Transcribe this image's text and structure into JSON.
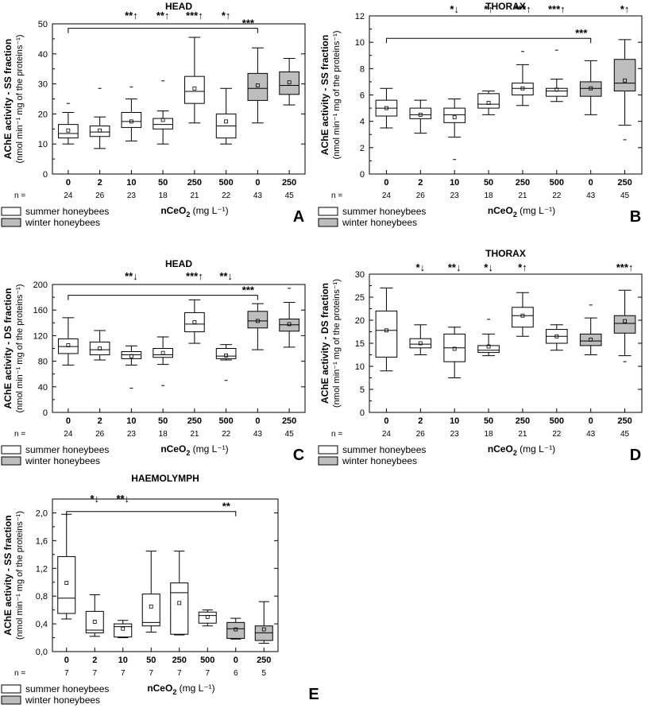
{
  "legend": {
    "summer": "summer honeybees",
    "winter": "winter honeybees"
  },
  "colors": {
    "summer": "#ffffff",
    "winter": "#bdbdbd",
    "stroke": "#000000"
  },
  "chart_data": [
    {
      "panel": "A",
      "type": "box",
      "title": "HEAD",
      "ylabel": "AChE activity - SS fraction",
      "ylabel_sub": "(nmol min⁻¹ mg of the proteins⁻¹)",
      "xlabel_main": "nCeO",
      "xlabel_sub": "2",
      "xlabel_unit": " (mg L⁻¹)",
      "n_label": "n =",
      "ylim": [
        0,
        50
      ],
      "yticks": [
        0,
        10,
        20,
        30,
        40,
        50
      ],
      "ytick_labels": [
        "0",
        "10",
        "20",
        "30",
        "40",
        "50"
      ],
      "categories": [
        "0",
        "2",
        "10",
        "50",
        "250",
        "500",
        "0",
        "250"
      ],
      "n": [
        "24",
        "26",
        "23",
        "18",
        "21",
        "22",
        "43",
        "45"
      ],
      "group": [
        "summer",
        "summer",
        "summer",
        "summer",
        "summer",
        "summer",
        "winter",
        "winter"
      ],
      "boxes": [
        {
          "whisker_low": 10,
          "q1": 12,
          "median": 13.5,
          "q3": 16.5,
          "whisker_high": 20.5,
          "mean": 14.5,
          "outliers": [
            23.5
          ]
        },
        {
          "whisker_low": 8.5,
          "q1": 12.5,
          "median": 14,
          "q3": 16,
          "whisker_high": 19,
          "mean": 14.5,
          "outliers": [
            28.5
          ]
        },
        {
          "whisker_low": 11,
          "q1": 15.5,
          "median": 17.5,
          "q3": 20.5,
          "whisker_high": 25,
          "mean": 17.5,
          "outliers": [
            29
          ]
        },
        {
          "whisker_low": 10,
          "q1": 15,
          "median": 16.5,
          "q3": 18.5,
          "whisker_high": 21,
          "mean": 18,
          "outliers": [
            31
          ]
        },
        {
          "whisker_low": 17,
          "q1": 23.5,
          "median": 27.5,
          "q3": 32.5,
          "whisker_high": 45.5,
          "mean": 28.5,
          "outliers": []
        },
        {
          "whisker_low": 10,
          "q1": 12,
          "median": 16,
          "q3": 20,
          "whisker_high": 28.5,
          "mean": 17.5,
          "outliers": []
        },
        {
          "whisker_low": 17,
          "q1": 24.5,
          "median": 28.5,
          "q3": 33.5,
          "whisker_high": 42,
          "mean": 29.5,
          "outliers": []
        },
        {
          "whisker_low": 23,
          "q1": 26.5,
          "median": 29.5,
          "q3": 34,
          "whisker_high": 38.5,
          "mean": 30.5,
          "outliers": []
        }
      ],
      "significance": [
        {
          "index": 2,
          "label": "**↑"
        },
        {
          "index": 3,
          "label": "**↑"
        },
        {
          "index": 4,
          "label": "***↑"
        },
        {
          "index": 5,
          "label": "*↑"
        }
      ],
      "bracket": {
        "from": 0,
        "to": 6,
        "level": 48.5,
        "label": "***"
      }
    },
    {
      "panel": "B",
      "type": "box",
      "title": "THORAX",
      "ylabel": "AChE activity - SS fraction",
      "ylabel_sub": "(nmol min⁻¹ mg of the proteins⁻¹)",
      "xlabel_main": "nCeO",
      "xlabel_sub": "2",
      "xlabel_unit": " (mg L⁻¹)",
      "n_label": "n =",
      "ylim": [
        0,
        12
      ],
      "yticks": [
        0,
        2,
        4,
        6,
        8,
        10,
        12
      ],
      "ytick_labels": [
        "0",
        "2",
        "4",
        "6",
        "8",
        "10",
        "12"
      ],
      "categories": [
        "0",
        "2",
        "10",
        "50",
        "250",
        "500",
        "0",
        "250"
      ],
      "n": [
        "24",
        "26",
        "23",
        "18",
        "21",
        "22",
        "43",
        "45"
      ],
      "group": [
        "summer",
        "summer",
        "summer",
        "summer",
        "summer",
        "summer",
        "winter",
        "winter"
      ],
      "boxes": [
        {
          "whisker_low": 3.5,
          "q1": 4.4,
          "median": 5.0,
          "q3": 5.6,
          "whisker_high": 6.5,
          "mean": 5.0,
          "outliers": []
        },
        {
          "whisker_low": 3.1,
          "q1": 4.2,
          "median": 4.5,
          "q3": 5.0,
          "whisker_high": 5.6,
          "mean": 4.5,
          "outliers": []
        },
        {
          "whisker_low": 2.8,
          "q1": 3.9,
          "median": 4.5,
          "q3": 5.0,
          "whisker_high": 5.7,
          "mean": 4.3,
          "outliers": [
            1.1
          ]
        },
        {
          "whisker_low": 4.5,
          "q1": 5.0,
          "median": 5.3,
          "q3": 6.1,
          "whisker_high": 6.3,
          "mean": 5.4,
          "outliers": []
        },
        {
          "whisker_low": 5.2,
          "q1": 6.0,
          "median": 6.5,
          "q3": 6.9,
          "whisker_high": 8.3,
          "mean": 6.5,
          "outliers": [
            9.3
          ]
        },
        {
          "whisker_low": 5.5,
          "q1": 5.9,
          "median": 6.3,
          "q3": 6.5,
          "whisker_high": 7.2,
          "mean": 6.4,
          "outliers": [
            9.4
          ]
        },
        {
          "whisker_low": 4.5,
          "q1": 5.9,
          "median": 6.5,
          "q3": 7.0,
          "whisker_high": 8.6,
          "mean": 6.5,
          "outliers": []
        },
        {
          "whisker_low": 3.7,
          "q1": 6.3,
          "median": 6.9,
          "q3": 8.7,
          "whisker_high": 10.2,
          "mean": 7.1,
          "outliers": [
            2.6
          ]
        }
      ],
      "significance": [
        {
          "index": 2,
          "label": "*↓"
        },
        {
          "index": 3,
          "label": "*↑"
        },
        {
          "index": 4,
          "label": "***↑"
        },
        {
          "index": 5,
          "label": "***↑"
        },
        {
          "index": 7,
          "label": "*↑"
        }
      ],
      "bracket": {
        "from": 0,
        "to": 6,
        "level": 10.3,
        "label": "***"
      }
    },
    {
      "panel": "C",
      "type": "box",
      "title": "HEAD",
      "ylabel": "AChE activity - DS fraction",
      "ylabel_sub": "(nmol min⁻¹ mg of the proteins⁻¹)",
      "xlabel_main": "nCeO",
      "xlabel_sub": "2",
      "xlabel_unit": " (mg L⁻¹)",
      "n_label": "n =",
      "ylim": [
        0,
        200
      ],
      "yticks": [
        0,
        40,
        80,
        120,
        160,
        200
      ],
      "ytick_labels": [
        "0",
        "40",
        "80",
        "120",
        "160",
        "200"
      ],
      "categories": [
        "0",
        "2",
        "10",
        "50",
        "250",
        "500",
        "0",
        "250"
      ],
      "n": [
        "24",
        "26",
        "23",
        "18",
        "21",
        "22",
        "43",
        "45"
      ],
      "group": [
        "summer",
        "summer",
        "summer",
        "summer",
        "summer",
        "summer",
        "winter",
        "winter"
      ],
      "boxes": [
        {
          "whisker_low": 74,
          "q1": 92,
          "median": 103,
          "q3": 115,
          "whisker_high": 148,
          "mean": 105,
          "outliers": []
        },
        {
          "whisker_low": 82,
          "q1": 90,
          "median": 98,
          "q3": 110,
          "whisker_high": 128,
          "mean": 100,
          "outliers": []
        },
        {
          "whisker_low": 74,
          "q1": 84,
          "median": 90,
          "q3": 95,
          "whisker_high": 104,
          "mean": 88,
          "outliers": [
            38
          ]
        },
        {
          "whisker_low": 75,
          "q1": 86,
          "median": 90,
          "q3": 100,
          "whisker_high": 118,
          "mean": 93,
          "outliers": [
            42
          ]
        },
        {
          "whisker_low": 108,
          "q1": 126,
          "median": 138,
          "q3": 156,
          "whisker_high": 176,
          "mean": 141,
          "outliers": []
        },
        {
          "whisker_low": 82,
          "q1": 84,
          "median": 88,
          "q3": 100,
          "whisker_high": 106,
          "mean": 89,
          "outliers": [
            50
          ]
        },
        {
          "whisker_low": 98,
          "q1": 132,
          "median": 143,
          "q3": 158,
          "whisker_high": 170,
          "mean": 143,
          "outliers": []
        },
        {
          "whisker_low": 102,
          "q1": 127,
          "median": 137,
          "q3": 146,
          "whisker_high": 172,
          "mean": 138,
          "outliers": [
            194
          ]
        }
      ],
      "significance": [
        {
          "index": 2,
          "label": "**↓"
        },
        {
          "index": 4,
          "label": "***↑"
        },
        {
          "index": 5,
          "label": "**↓"
        }
      ],
      "bracket": {
        "from": 0,
        "to": 6,
        "level": 183,
        "label": "***"
      }
    },
    {
      "panel": "D",
      "type": "box",
      "title": "THORAX",
      "ylabel": "AChE activity - DS fraction",
      "ylabel_sub": "(nmol min⁻¹ mg of the proteins⁻¹)",
      "xlabel_main": "nCeO",
      "xlabel_sub": "2",
      "xlabel_unit": " (mg L⁻¹)",
      "n_label": "n =",
      "ylim": [
        0,
        30
      ],
      "yticks": [
        0,
        5,
        10,
        15,
        20,
        25,
        30
      ],
      "ytick_labels": [
        "0",
        "5",
        "10",
        "15",
        "20",
        "25",
        "30"
      ],
      "categories": [
        "0",
        "2",
        "10",
        "50",
        "250",
        "500",
        "0",
        "250"
      ],
      "n": [
        "24",
        "26",
        "23",
        "18",
        "21",
        "22",
        "43",
        "45"
      ],
      "group": [
        "summer",
        "summer",
        "summer",
        "summer",
        "summer",
        "summer",
        "winter",
        "winter"
      ],
      "boxes": [
        {
          "whisker_low": 9,
          "q1": 12,
          "median": 17.8,
          "q3": 22,
          "whisker_high": 27,
          "mean": 17.8,
          "outliers": []
        },
        {
          "whisker_low": 12.5,
          "q1": 14,
          "median": 14.8,
          "q3": 16,
          "whisker_high": 19,
          "mean": 15,
          "outliers": []
        },
        {
          "whisker_low": 7.5,
          "q1": 11,
          "median": 14,
          "q3": 17,
          "whisker_high": 18.5,
          "mean": 13.8,
          "outliers": []
        },
        {
          "whisker_low": 12.3,
          "q1": 13,
          "median": 13.5,
          "q3": 14.5,
          "whisker_high": 17,
          "mean": 14.3,
          "outliers": [
            20.2
          ]
        },
        {
          "whisker_low": 16.5,
          "q1": 18.5,
          "median": 21,
          "q3": 22.8,
          "whisker_high": 26,
          "mean": 21,
          "outliers": []
        },
        {
          "whisker_low": 13.5,
          "q1": 15,
          "median": 16.5,
          "q3": 18,
          "whisker_high": 19,
          "mean": 16.5,
          "outliers": []
        },
        {
          "whisker_low": 12.5,
          "q1": 14.5,
          "median": 15.5,
          "q3": 17,
          "whisker_high": 20.5,
          "mean": 15.8,
          "outliers": [
            23.3
          ]
        },
        {
          "whisker_low": 12.3,
          "q1": 17.2,
          "median": 19.3,
          "q3": 21,
          "whisker_high": 26.5,
          "mean": 19.8,
          "outliers": [
            11
          ]
        }
      ],
      "significance": [
        {
          "index": 1,
          "label": "*↓"
        },
        {
          "index": 2,
          "label": "**↓"
        },
        {
          "index": 3,
          "label": "*↓"
        },
        {
          "index": 4,
          "label": "*↑"
        },
        {
          "index": 7,
          "label": "***↑"
        }
      ],
      "bracket": null
    },
    {
      "panel": "E",
      "type": "box",
      "title": "HAEMOLYMPH",
      "ylabel": "AChE activity - SS fraction",
      "ylabel_sub": "(nmol min⁻¹ mg of the proteins⁻¹)",
      "xlabel_main": "nCeO",
      "xlabel_sub": "2",
      "xlabel_unit": " (mg L⁻¹)",
      "n_label": "n =",
      "ylim": [
        0,
        2.2
      ],
      "yticks": [
        0,
        0.4,
        0.8,
        1.2,
        1.6,
        2.0
      ],
      "ytick_labels": [
        "0,0",
        "0,4",
        "0,8",
        "1,2",
        "1,6",
        "2,0"
      ],
      "categories": [
        "0",
        "2",
        "10",
        "50",
        "250",
        "500",
        "0",
        "250"
      ],
      "n": [
        "7",
        "7",
        "7",
        "7",
        "7",
        "7",
        "6",
        "5"
      ],
      "group": [
        "summer",
        "summer",
        "summer",
        "summer",
        "summer",
        "summer",
        "winter",
        "winter"
      ],
      "boxes": [
        {
          "whisker_low": 0.47,
          "q1": 0.55,
          "median": 0.77,
          "q3": 1.37,
          "whisker_high": 1.98,
          "mean": 0.99,
          "outliers": []
        },
        {
          "whisker_low": 0.22,
          "q1": 0.27,
          "median": 0.31,
          "q3": 0.58,
          "whisker_high": 0.82,
          "mean": 0.43,
          "outliers": []
        },
        {
          "whisker_low": 0.2,
          "q1": 0.21,
          "median": 0.36,
          "q3": 0.4,
          "whisker_high": 0.45,
          "mean": 0.33,
          "outliers": []
        },
        {
          "whisker_low": 0.28,
          "q1": 0.37,
          "median": 0.42,
          "q3": 0.83,
          "whisker_high": 1.45,
          "mean": 0.65,
          "outliers": []
        },
        {
          "whisker_low": 0.24,
          "q1": 0.25,
          "median": 0.85,
          "q3": 0.99,
          "whisker_high": 1.45,
          "mean": 0.7,
          "outliers": []
        },
        {
          "whisker_low": 0.37,
          "q1": 0.41,
          "median": 0.52,
          "q3": 0.57,
          "whisker_high": 0.6,
          "mean": 0.5,
          "outliers": []
        },
        {
          "whisker_low": 0.18,
          "q1": 0.19,
          "median": 0.33,
          "q3": 0.42,
          "whisker_high": 0.48,
          "mean": 0.32,
          "outliers": []
        },
        {
          "whisker_low": 0.12,
          "q1": 0.16,
          "median": 0.27,
          "q3": 0.37,
          "whisker_high": 0.72,
          "mean": 0.32,
          "outliers": []
        }
      ],
      "significance": [
        {
          "index": 1,
          "label": "*↓"
        },
        {
          "index": 2,
          "label": "**↓"
        }
      ],
      "bracket": {
        "from": 0,
        "to": 6,
        "level": 2.02,
        "label": "**"
      }
    }
  ]
}
